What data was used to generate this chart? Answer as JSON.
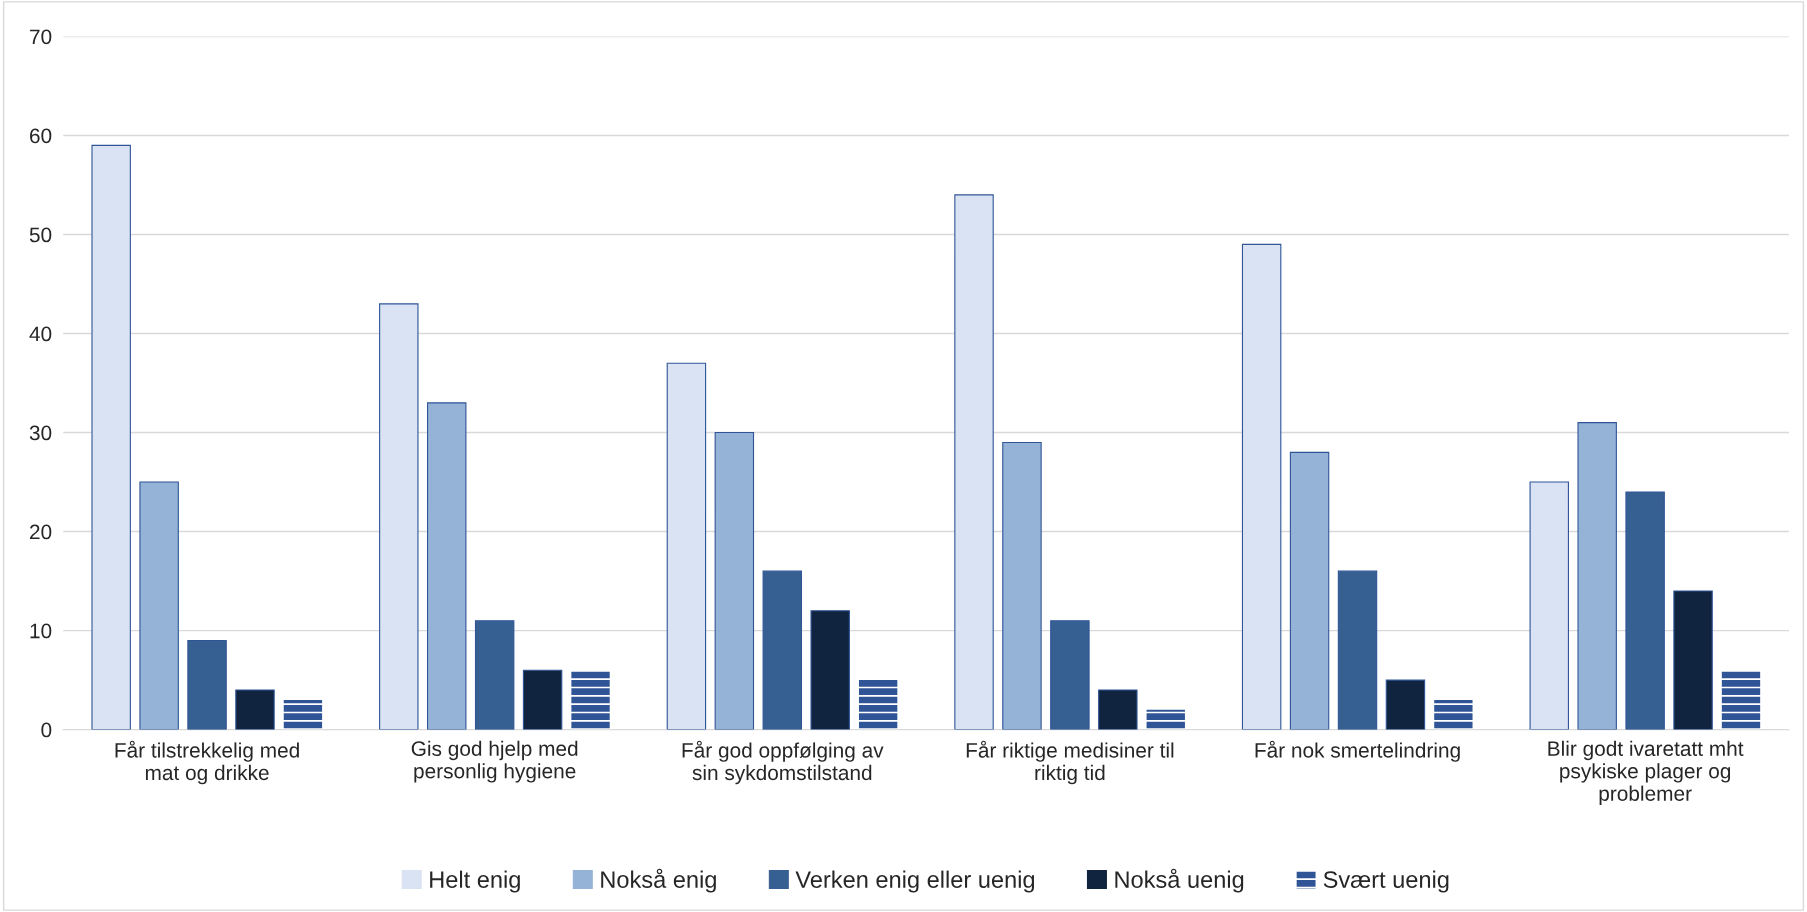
{
  "chart_data": {
    "type": "bar",
    "categories": [
      "Får tilstrekkelig med\nmat og drikke",
      "Gis god hjelp med\npersonlig hygiene",
      "Får god oppfølging av\nsin sykdomstilstand",
      "Får riktige medisiner til\nriktig tid",
      "Får nok smertelindring",
      "Blir godt ivaretatt mht\npsykiske plager og\nproblemer"
    ],
    "series": [
      {
        "name": "Helt enig",
        "color": "#dae3f3",
        "values": [
          59,
          43,
          37,
          54,
          49,
          25
        ]
      },
      {
        "name": "Nokså enig",
        "color": "#95b3d7",
        "values": [
          25,
          33,
          30,
          29,
          28,
          31
        ]
      },
      {
        "name": "Verken enig eller uenig",
        "color": "#376092",
        "values": [
          9,
          11,
          16,
          11,
          16,
          24
        ]
      },
      {
        "name": "Nokså uenig",
        "color": "#10243f",
        "values": [
          4,
          6,
          12,
          4,
          5,
          14
        ]
      },
      {
        "name": "Svært uenig",
        "color": "#2f5597",
        "values": [
          3,
          6,
          5,
          2,
          3,
          6
        ]
      }
    ],
    "ylim": [
      0,
      70
    ],
    "yticks": [
      0,
      10,
      20,
      30,
      40,
      50,
      60,
      70
    ],
    "grid": "y",
    "legend": "bottom"
  }
}
